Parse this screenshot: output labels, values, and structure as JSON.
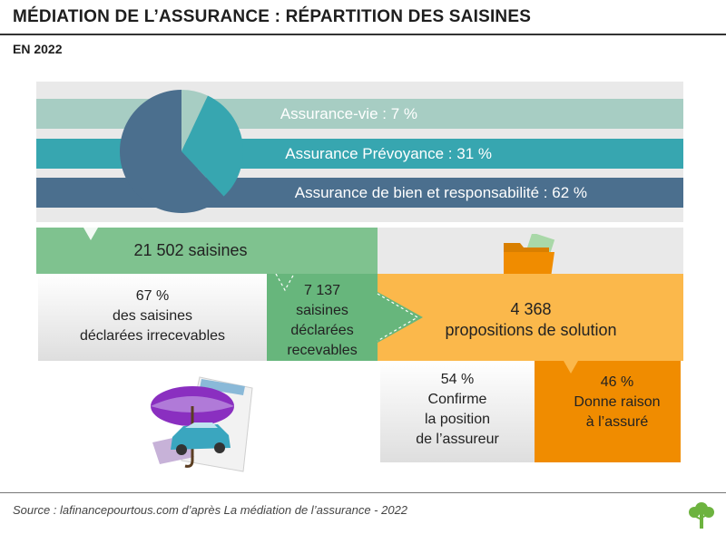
{
  "header": {
    "title": "MÉDIATION DE L’ASSURANCE : RÉPARTITION DES SAISINES",
    "subtitle": "EN 2022"
  },
  "colors": {
    "vie": "#a7cdc3",
    "prevoyance": "#37a6b0",
    "bien": "#4b6f8e",
    "green_light": "#7fc28f",
    "green_dark": "#67b67c",
    "yellow": "#fbb84b",
    "orange": "#f08c00",
    "gray": "#e3e3e3"
  },
  "chart_data": {
    "type": "pie",
    "title": "MÉDIATION DE L’ASSURANCE : RÉPARTITION DES SAISINES",
    "subtitle": "EN 2022",
    "categories": [
      "Assurance-vie",
      "Assurance Prévoyance",
      "Assurance de bien et responsabilité"
    ],
    "values": [
      7,
      31,
      62
    ],
    "labels": [
      "Assurance-vie : 7 %",
      "Assurance Prévoyance : 31 %",
      "Assurance de bien et responsabilité : 62 %"
    ]
  },
  "flow": {
    "total": "21 502 saisines",
    "irrecevables": [
      "67 %",
      "des saisines",
      "déclarées irrecevables"
    ],
    "recevables": [
      "7 137",
      "saisines",
      "déclarées",
      "recevables"
    ],
    "propositions": [
      "4 368",
      "propositions de solution"
    ],
    "confirme": [
      "54 %",
      "Confirme",
      "la position",
      "de l’assureur"
    ],
    "raison": [
      "46 %",
      "Donne raison",
      "à l’assuré"
    ]
  },
  "icons": {
    "folder": "folder-icon",
    "umbrella": "umbrella-car-icon",
    "logo": "tree-logo-icon"
  },
  "footer": {
    "source": "Source : lafinancepourtous.com d’après La médiation de l’assurance - 2022"
  }
}
